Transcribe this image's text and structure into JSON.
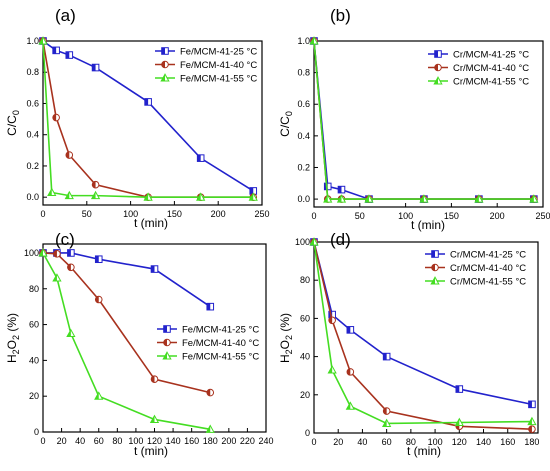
{
  "chart_data": [
    {
      "panel": "(a)",
      "type": "line",
      "xlabel": "t (min)",
      "ylabel": "C/C",
      "ylabel_sub": "0",
      "xlim": [
        0,
        250
      ],
      "ylim": [
        -0.05,
        1.0
      ],
      "xticks": [
        "0",
        "50",
        "100",
        "150",
        "200",
        "250"
      ],
      "yticks": [
        "0.0",
        "0.2",
        "0.4",
        "0.6",
        "0.8",
        "1.0"
      ],
      "legend_position": "top-right",
      "series": [
        {
          "name": "Fe/MCM-41-25 °C",
          "color": "#2222cc",
          "marker": "square",
          "x": [
            0,
            15,
            30,
            60,
            120,
            180,
            240
          ],
          "y": [
            1.0,
            0.94,
            0.91,
            0.83,
            0.61,
            0.25,
            0.04
          ]
        },
        {
          "name": "Fe/MCM-41-40 °C",
          "color": "#a8321e",
          "marker": "circle",
          "x": [
            0,
            15,
            30,
            60,
            120,
            180,
            240
          ],
          "y": [
            1.0,
            0.51,
            0.27,
            0.08,
            0.0,
            0.0,
            0.0
          ]
        },
        {
          "name": "Fe/MCM-41-55 °C",
          "color": "#44dd22",
          "marker": "triangle",
          "x": [
            0,
            10,
            30,
            60,
            120,
            180,
            240
          ],
          "y": [
            1.0,
            0.03,
            0.01,
            0.01,
            0.0,
            0.0,
            0.0
          ]
        }
      ]
    },
    {
      "panel": "(b)",
      "type": "line",
      "xlabel": "t (min)",
      "ylabel": "C/C",
      "ylabel_sub": "0",
      "xlim": [
        0,
        250
      ],
      "ylim": [
        -0.05,
        1.0
      ],
      "xticks": [
        "0",
        "50",
        "100",
        "150",
        "200",
        "250"
      ],
      "yticks": [
        "0.0",
        "0.2",
        "0.4",
        "0.6",
        "0.8",
        "1.0"
      ],
      "legend_position": "top-right",
      "series": [
        {
          "name": "Cr/MCM-41-25 °C",
          "color": "#2222cc",
          "marker": "square",
          "x": [
            0,
            15,
            30,
            60,
            120,
            180,
            240
          ],
          "y": [
            1.0,
            0.08,
            0.06,
            0.0,
            0.0,
            0.0,
            0.0
          ]
        },
        {
          "name": "Cr/MCM-41-40 °C",
          "color": "#a8321e",
          "marker": "circle",
          "x": [
            0,
            15,
            30,
            60,
            120,
            180,
            240
          ],
          "y": [
            1.0,
            0.0,
            0.0,
            0.0,
            0.0,
            0.0,
            0.0
          ]
        },
        {
          "name": "Cr/MCM-41-55 °C",
          "color": "#44dd22",
          "marker": "triangle",
          "x": [
            0,
            15,
            30,
            60,
            120,
            180,
            240
          ],
          "y": [
            1.0,
            0.0,
            0.0,
            0.0,
            0.0,
            0.0,
            0.0
          ]
        }
      ]
    },
    {
      "panel": "(c)",
      "type": "line",
      "xlabel": "t (min)",
      "ylabel": "H",
      "ylabel_sub": "2",
      "ylabel_mid": "O",
      "ylabel_sub2": "2",
      "ylabel_end": " (%)",
      "xlim": [
        0,
        240
      ],
      "ylim": [
        0,
        105
      ],
      "xticks": [
        "0",
        "20",
        "40",
        "60",
        "80",
        "100",
        "120",
        "140",
        "160",
        "180",
        "200",
        "220",
        "240"
      ],
      "yticks": [
        "0",
        "20",
        "40",
        "60",
        "80",
        "100"
      ],
      "legend_position": "bottom-right",
      "series": [
        {
          "name": "Fe/MCM-41-25 °C",
          "color": "#2222cc",
          "marker": "square",
          "x": [
            0,
            15,
            30,
            60,
            120,
            180
          ],
          "y": [
            100,
            100,
            100,
            96.5,
            91,
            70
          ]
        },
        {
          "name": "Fe/MCM-41-40 °C",
          "color": "#a8321e",
          "marker": "circle",
          "x": [
            0,
            15,
            30,
            60,
            120,
            180
          ],
          "y": [
            100,
            99.5,
            92,
            74,
            29.5,
            22
          ]
        },
        {
          "name": "Fe/MCM-41-55 °C",
          "color": "#44dd22",
          "marker": "triangle",
          "x": [
            0,
            15,
            30,
            60,
            120,
            180
          ],
          "y": [
            100,
            86,
            55,
            20,
            7,
            1.5
          ]
        }
      ]
    },
    {
      "panel": "(d)",
      "type": "line",
      "xlabel": "t (min)",
      "ylabel": "H",
      "ylabel_sub": "2",
      "ylabel_mid": "O",
      "ylabel_sub2": "2",
      "ylabel_end": " (%)",
      "xlim": [
        0,
        185
      ],
      "ylim": [
        0,
        100
      ],
      "xticks": [
        "0",
        "20",
        "40",
        "60",
        "80",
        "100",
        "120",
        "140",
        "160",
        "180"
      ],
      "yticks": [
        "0",
        "20",
        "40",
        "60",
        "80",
        "100"
      ],
      "legend_position": "top-right",
      "series": [
        {
          "name": "Cr/MCM-41-25 °C",
          "color": "#2222cc",
          "marker": "square",
          "x": [
            0,
            15,
            30,
            60,
            120,
            180
          ],
          "y": [
            100,
            62,
            54,
            40,
            23,
            15
          ]
        },
        {
          "name": "Cr/MCM-41-40 °C",
          "color": "#a8321e",
          "marker": "circle",
          "x": [
            0,
            15,
            30,
            60,
            120,
            180
          ],
          "y": [
            100,
            59,
            32,
            11.5,
            3.5,
            2
          ]
        },
        {
          "name": "Cr/MCM-41-55 °C",
          "color": "#44dd22",
          "marker": "triangle",
          "x": [
            0,
            15,
            30,
            60,
            120,
            180
          ],
          "y": [
            100,
            33,
            14,
            5,
            5.5,
            6
          ]
        }
      ]
    }
  ]
}
